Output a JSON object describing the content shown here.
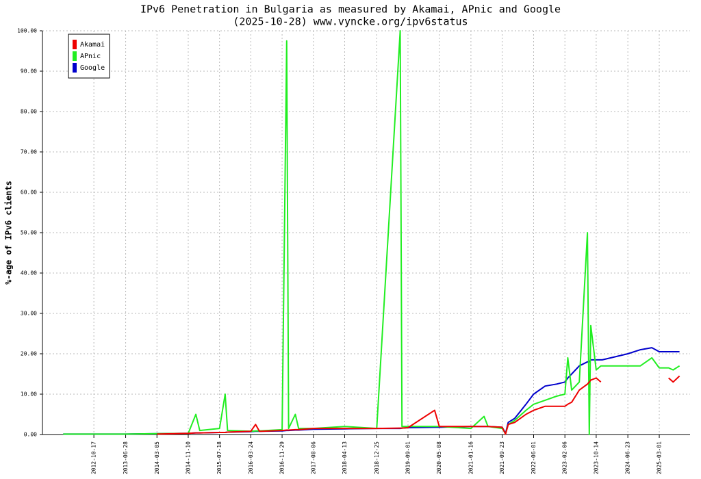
{
  "chart_data": {
    "type": "line",
    "title": "IPv6 Penetration in Bulgaria as measured by Akamai, APnic and Google",
    "subtitle": "(2025-10-28) www.vyncke.org/ipv6status",
    "y_label": "%-age of IPv6 clients",
    "x": [
      "2012-02-15",
      "2012-10-17",
      "2013-06-28",
      "2014-03-05",
      "2014-11-10",
      "2015-01-10",
      "2015-02-10",
      "2015-07-18",
      "2015-09-01",
      "2015-09-20",
      "2016-03-24",
      "2016-05-01",
      "2016-06-01",
      "2016-11-29",
      "2017-01-05",
      "2017-01-20",
      "2017-03-15",
      "2017-04-10",
      "2017-08-06",
      "2018-04-13",
      "2018-12-25",
      "2019-07-01",
      "2019-07-15",
      "2019-09-01",
      "2020-04-01",
      "2020-05-08",
      "2021-01-16",
      "2021-05-01",
      "2021-06-01",
      "2021-09-23",
      "2021-10-20",
      "2021-11-10",
      "2022-01-01",
      "2022-04-01",
      "2022-06-01",
      "2022-09-01",
      "2022-12-01",
      "2023-02-06",
      "2023-03-01",
      "2023-04-01",
      "2023-06-01",
      "2023-08-05",
      "2023-08-20",
      "2023-09-01",
      "2023-10-14",
      "2023-11-20",
      "2023-12-01",
      "2024-06-23",
      "2024-10-01",
      "2025-01-01",
      "2025-03-01",
      "2025-05-15",
      "2025-06-20",
      "2025-08-10"
    ],
    "series": [
      {
        "name": "Google",
        "color": "#0000cc",
        "values": [
          0.1,
          0.1,
          0.1,
          0.2,
          0.3,
          0.4,
          0.4,
          0.5,
          0.5,
          0.6,
          0.7,
          0.8,
          0.8,
          0.9,
          1.0,
          1.0,
          1.1,
          1.1,
          1.3,
          1.4,
          1.5,
          1.5,
          1.6,
          1.7,
          1.8,
          1.8,
          2.0,
          2.0,
          2.0,
          1.8,
          0.3,
          3.0,
          4.0,
          7.5,
          10.0,
          12.0,
          12.5,
          13.0,
          14.0,
          15.0,
          17.0,
          18.0,
          18.0,
          18.5,
          18.5,
          18.5,
          18.5,
          20.0,
          21.0,
          21.5,
          20.5,
          20.5,
          20.5,
          20.5
        ]
      },
      {
        "name": "APnic",
        "color": "#22ee22",
        "values": [
          0.1,
          0.1,
          0.1,
          0.2,
          0.3,
          5.0,
          1.0,
          1.5,
          10.0,
          1.0,
          0.8,
          0.9,
          0.9,
          1.2,
          97.5,
          1.5,
          5.0,
          1.5,
          1.5,
          2.0,
          1.5,
          100,
          2.0,
          2.0,
          2.0,
          2.0,
          1.5,
          4.5,
          2.0,
          1.5,
          0.2,
          2.5,
          3.5,
          6.0,
          7.5,
          8.5,
          9.5,
          10.0,
          19.0,
          11.0,
          13.0,
          50,
          0.0,
          27.0,
          16.0,
          17.0,
          17.0,
          17.0,
          17.0,
          19.0,
          16.5,
          16.5,
          16.0,
          17.0
        ]
      },
      {
        "name": "Akamai",
        "color": "#ee0000",
        "values": [
          null,
          null,
          null,
          0.1,
          0.3,
          0.4,
          0.4,
          0.5,
          0.5,
          0.6,
          0.8,
          2.5,
          0.8,
          1.0,
          1.1,
          1.1,
          1.2,
          1.2,
          1.5,
          1.5,
          1.5,
          1.6,
          1.6,
          1.7,
          6.0,
          2.0,
          2.0,
          2.0,
          2.0,
          1.8,
          0.1,
          2.5,
          3.0,
          5.0,
          6.0,
          7.0,
          7.0,
          7.0,
          7.5,
          8.0,
          11.0,
          12.5,
          13.0,
          13.5,
          14.0,
          13.0,
          null,
          null,
          null,
          null,
          null,
          14.0,
          13.0,
          14.5
        ]
      }
    ],
    "legend_order": [
      2,
      1,
      0
    ],
    "xlim": [
      "2011-09-02",
      "2025-11-02"
    ],
    "xticks": [
      "2012-10-17",
      "2013-06-28",
      "2014-03-05",
      "2014-11-10",
      "2015-07-18",
      "2016-03-24",
      "2016-11-29",
      "2017-08-06",
      "2018-04-13",
      "2018-12-25",
      "2019-09-01",
      "2020-05-08",
      "2021-01-16",
      "2021-09-23",
      "2022-06-01",
      "2023-02-06",
      "2023-10-14",
      "2024-06-23",
      "2025-03-01"
    ],
    "ylim": [
      0,
      100
    ],
    "yticks": [
      {
        "value": 0,
        "label": "0.00"
      },
      {
        "value": 10,
        "label": "10.00"
      },
      {
        "value": 20,
        "label": "20.00"
      },
      {
        "value": 30,
        "label": "30.00"
      },
      {
        "value": 40,
        "label": "40.00"
      },
      {
        "value": 50,
        "label": "50.00"
      },
      {
        "value": 60,
        "label": "60.00"
      },
      {
        "value": 70,
        "label": "70.00"
      },
      {
        "value": 80,
        "label": "80.00"
      },
      {
        "value": 90,
        "label": "90.00"
      },
      {
        "value": 100,
        "label": "100.00"
      }
    ],
    "grid": true,
    "legend": "upper left"
  }
}
